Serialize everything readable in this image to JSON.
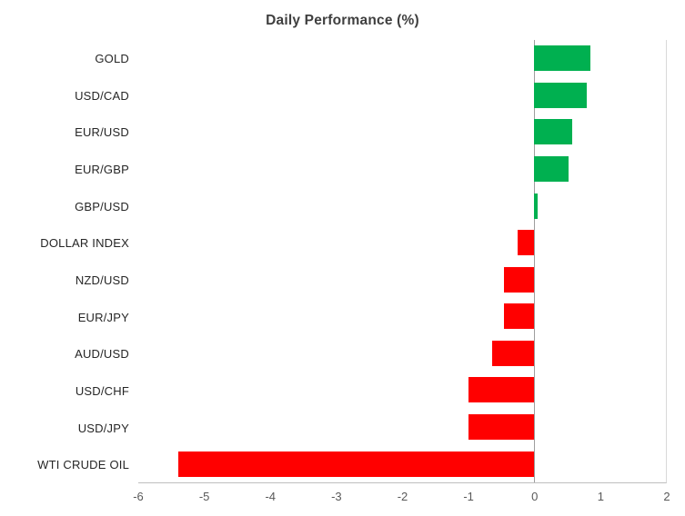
{
  "chart_data": {
    "type": "bar",
    "orientation": "horizontal",
    "title": "Daily Performance (%)",
    "categories": [
      "GOLD",
      "USD/CAD",
      "EUR/USD",
      "EUR/GBP",
      "GBP/USD",
      "DOLLAR INDEX",
      "NZD/USD",
      "EUR/JPY",
      "AUD/USD",
      "USD/CHF",
      "USD/JPY",
      "WTI CRUDE OIL"
    ],
    "values": [
      0.85,
      0.8,
      0.58,
      0.52,
      0.06,
      -0.25,
      -0.45,
      -0.45,
      -0.63,
      -1.0,
      -1.0,
      -5.4
    ],
    "xlim": [
      -6,
      2
    ],
    "x_ticks": [
      -6,
      -5,
      -4,
      -3,
      -2,
      -1,
      0,
      1,
      2
    ],
    "xlabel": "",
    "ylabel": "",
    "grid": false,
    "legend": false,
    "positive_color": "#00B050",
    "negative_color": "#FF0000",
    "axis_line_color": "#bfbfbf",
    "zero_line_color": "#9e9e9e"
  }
}
